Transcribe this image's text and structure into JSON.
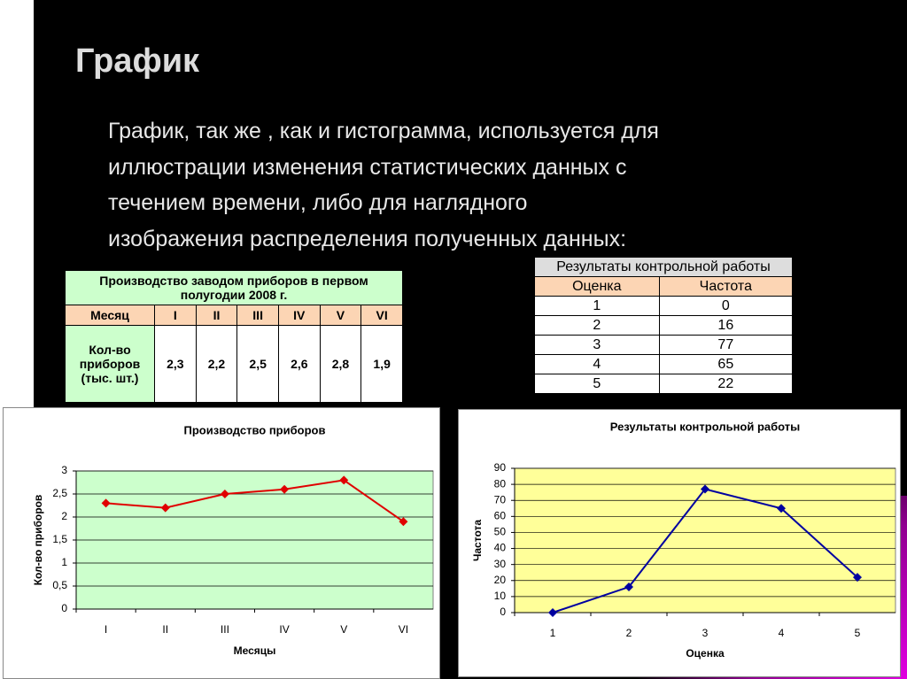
{
  "title": "График",
  "body": [
    "График, так же , как и гистограмма,  используется для",
    "иллюстрации изменения статистических данных с",
    "течением времени, либо для наглядного",
    "изображения распределения полученных данных:"
  ],
  "table1": {
    "title": "Производство заводом приборов в первом полугодии 2008 г.",
    "header": [
      "Месяц",
      "I",
      "II",
      "III",
      "IV",
      "V",
      "VI"
    ],
    "rows": [
      [
        "Кол-во приборов (тыс. шт.)",
        "2,3",
        "2,2",
        "2,5",
        "2,6",
        "2,8",
        "1,9"
      ]
    ]
  },
  "table2": {
    "title": "Результаты контрольной работы",
    "header": [
      "Оценка",
      "Частота"
    ],
    "rows": [
      [
        "1",
        "0"
      ],
      [
        "2",
        "16"
      ],
      [
        "3",
        "77"
      ],
      [
        "4",
        "65"
      ],
      [
        "5",
        "22"
      ]
    ]
  },
  "chart_data": [
    {
      "type": "line",
      "title": "Производство приборов",
      "x_label": "Месяцы",
      "y_label": "Кол-во приборов",
      "categories": [
        "I",
        "II",
        "III",
        "IV",
        "V",
        "VI"
      ],
      "values": [
        2.3,
        2.2,
        2.5,
        2.6,
        2.8,
        1.9
      ],
      "color": "#e00000",
      "ylim": [
        0,
        3
      ],
      "yticks": [
        0,
        {
          "value": 0.5,
          "label": "0,5"
        },
        1,
        {
          "value": 1.5,
          "label": "1,5"
        },
        2,
        {
          "value": 2.5,
          "label": "2,5"
        },
        3
      ],
      "grid": true,
      "plot_background": "#ccffcc"
    },
    {
      "type": "line",
      "title": "Результаты контрольной работы",
      "x_label": "Оценка",
      "y_label": "Частота",
      "categories": [
        "1",
        "2",
        "3",
        "4",
        "5"
      ],
      "values": [
        0,
        16,
        77,
        65,
        22
      ],
      "color": "#0000a0",
      "ylim": [
        0,
        90
      ],
      "yticks": [
        0,
        10,
        20,
        30,
        40,
        50,
        60,
        70,
        80,
        90
      ],
      "grid": true,
      "plot_background": "#ffff99"
    }
  ]
}
